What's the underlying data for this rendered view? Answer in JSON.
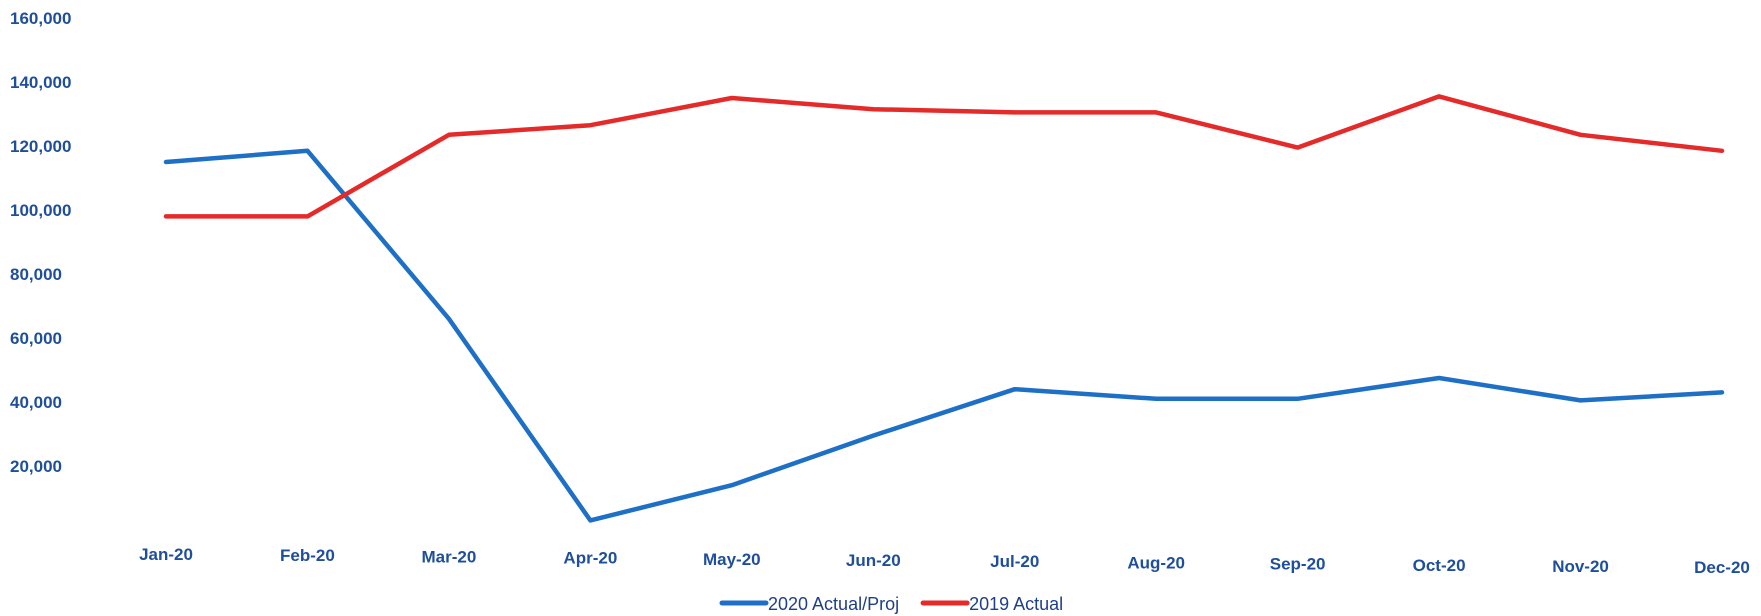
{
  "chart_data": {
    "type": "line",
    "title": "",
    "xlabel": "",
    "ylabel": "",
    "categories": [
      "Jan-20",
      "Feb-20",
      "Mar-20",
      "Apr-20",
      "May-20",
      "Jun-20",
      "Jul-20",
      "Aug-20",
      "Sep-20",
      "Oct-20",
      "Nov-20",
      "Dec-20"
    ],
    "y_ticks": [
      "160,000",
      "140,000",
      "120,000",
      "100,000",
      "80,000",
      "60,000",
      "40,000",
      "20,000"
    ],
    "ylim": [
      0,
      160000
    ],
    "grid": false,
    "legend_position": "bottom",
    "series": [
      {
        "name": "2020 Actual/Proj",
        "color": "#1e6fc6",
        "values": [
          115000,
          118500,
          66000,
          3000,
          14000,
          29500,
          44000,
          41000,
          41000,
          47500,
          40500,
          43000
        ]
      },
      {
        "name": "2019 Actual",
        "color": "#e52a2a",
        "values": [
          98000,
          98000,
          123500,
          126500,
          135000,
          131500,
          130500,
          130500,
          119500,
          135500,
          123500,
          118500
        ]
      }
    ]
  }
}
